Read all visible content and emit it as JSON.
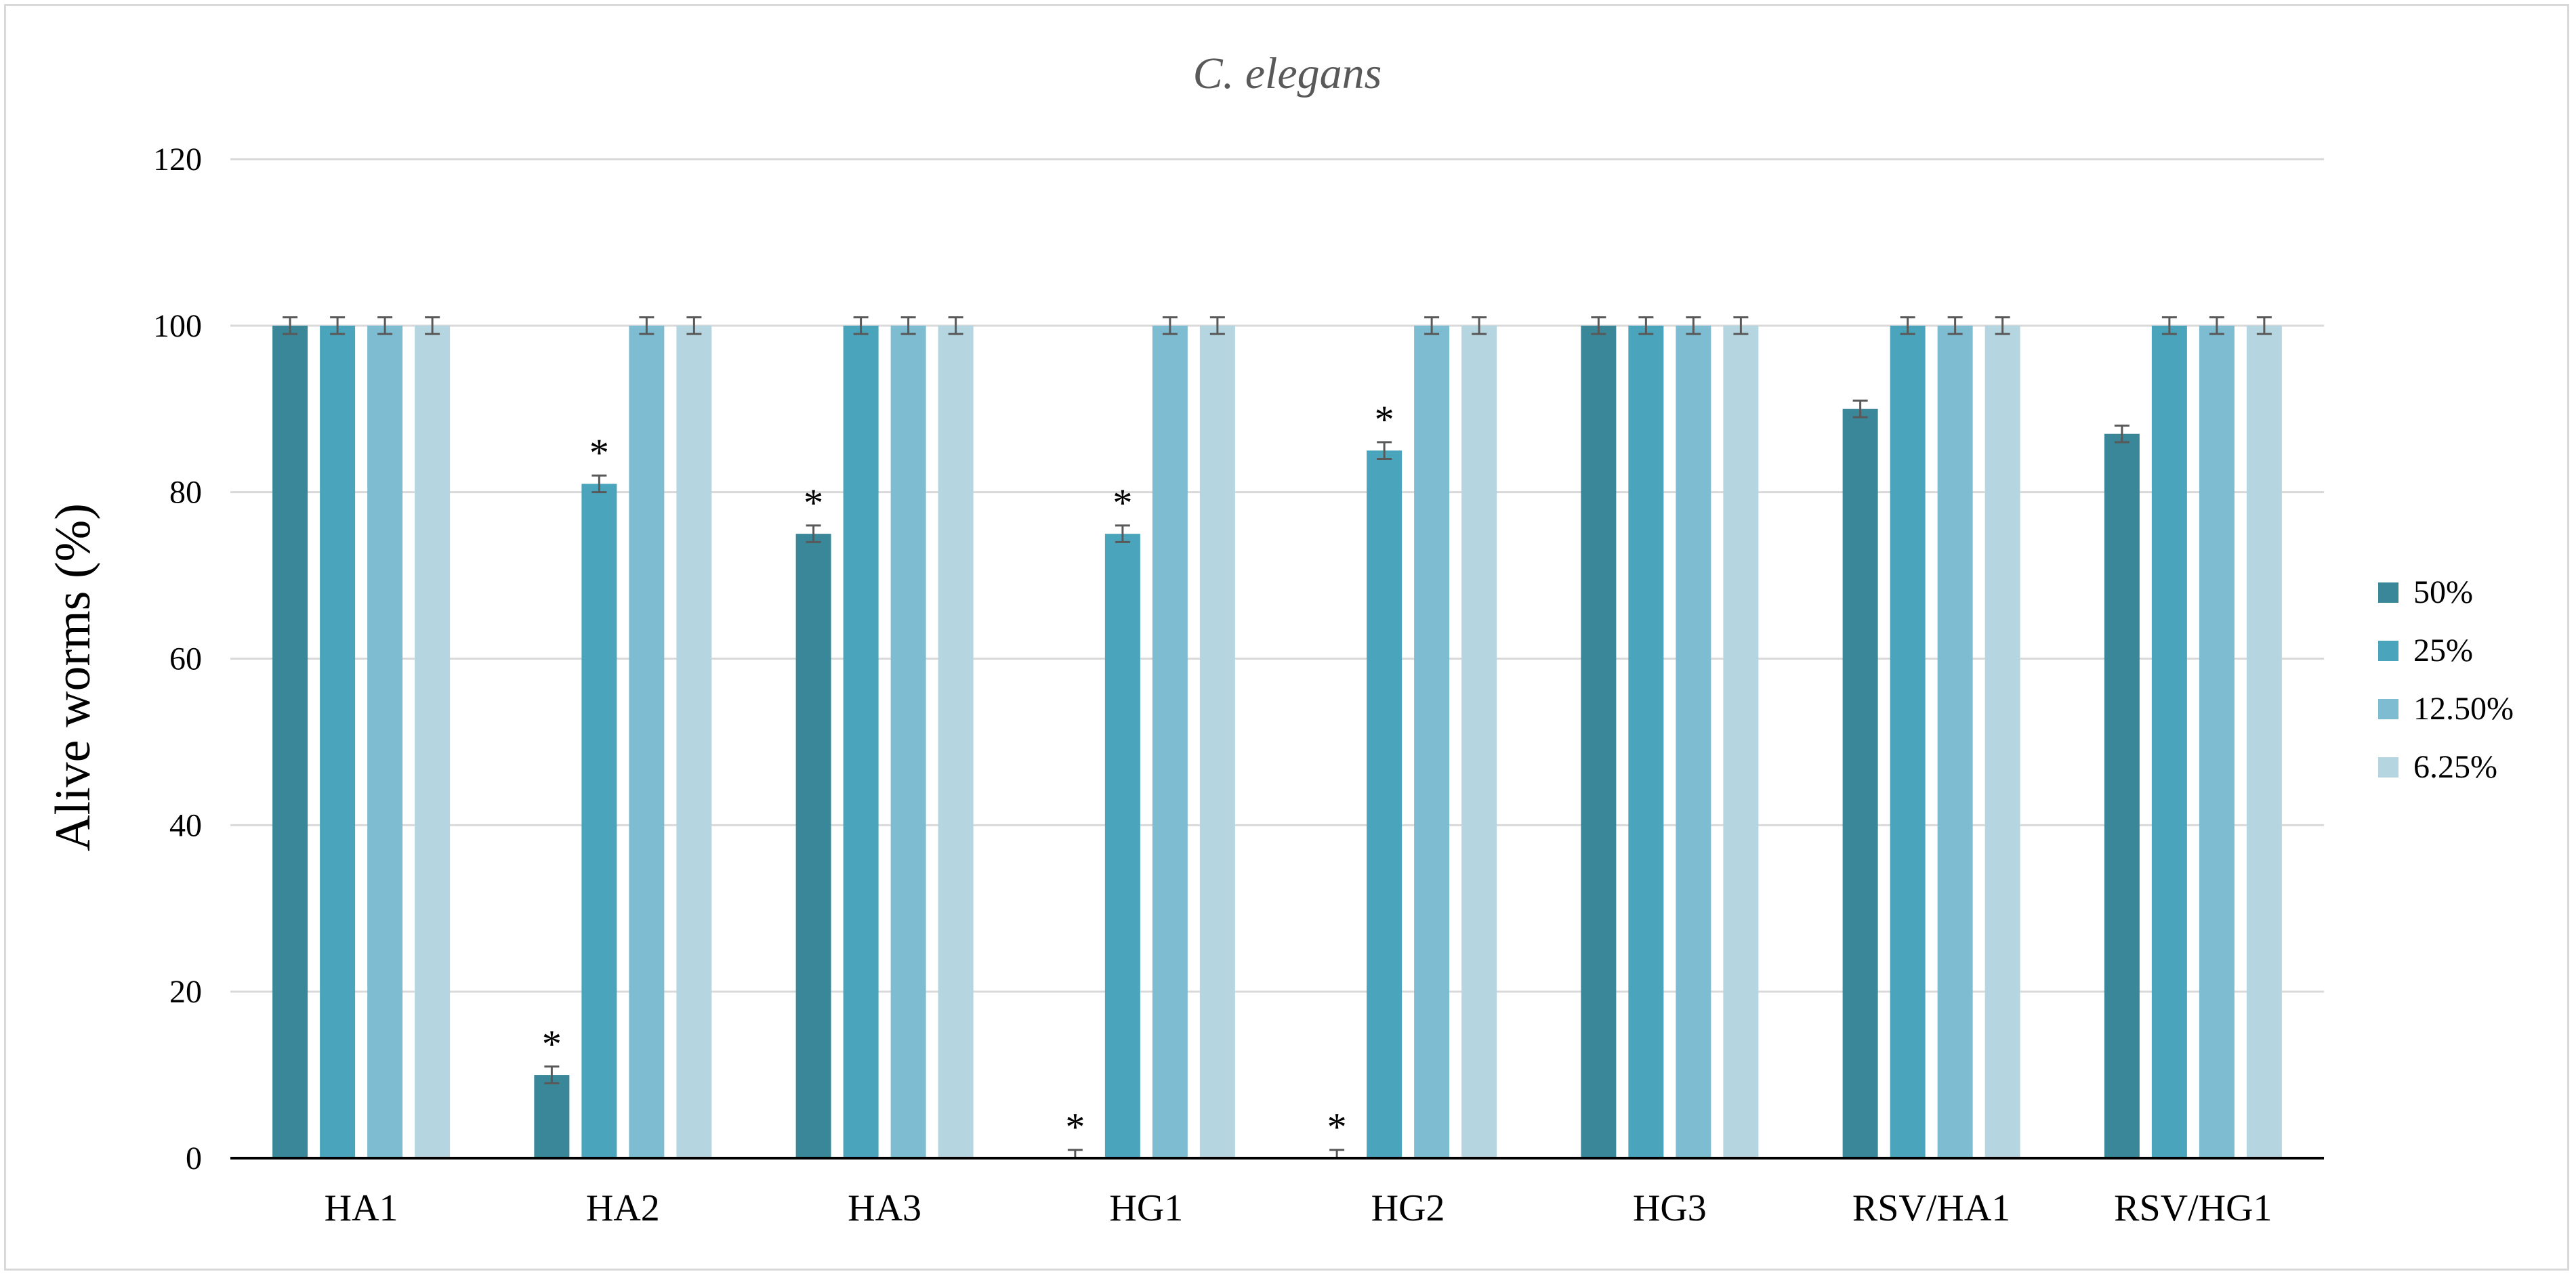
{
  "chart_data": {
    "type": "bar",
    "title": "C. elegans",
    "xlabel": "",
    "ylabel": "Alive worms (%)",
    "ylim": [
      0,
      120
    ],
    "yticks": [
      0,
      20,
      40,
      60,
      80,
      100,
      120
    ],
    "grid": true,
    "legend_position": "right",
    "categories": [
      "HA1",
      "HA2",
      "HA3",
      "HG1",
      "HG2",
      "HG3",
      "RSV/HA1",
      "RSV/HG1"
    ],
    "series": [
      {
        "name": "50%",
        "color": "#3a8799",
        "values": [
          100,
          10,
          75,
          0,
          0,
          100,
          90,
          87
        ],
        "significant": [
          false,
          true,
          true,
          true,
          true,
          false,
          false,
          false
        ]
      },
      {
        "name": "25%",
        "color": "#4aa5bc",
        "values": [
          100,
          81,
          100,
          75,
          85,
          100,
          100,
          100
        ],
        "significant": [
          false,
          true,
          false,
          true,
          true,
          false,
          false,
          false
        ]
      },
      {
        "name": "12.50%",
        "color": "#7dbcd1",
        "values": [
          100,
          100,
          100,
          100,
          100,
          100,
          100,
          100
        ],
        "significant": [
          false,
          false,
          false,
          false,
          false,
          false,
          false,
          false
        ]
      },
      {
        "name": "6.25%",
        "color": "#b5d6e1",
        "values": [
          100,
          100,
          100,
          100,
          100,
          100,
          100,
          100
        ],
        "significant": [
          false,
          false,
          false,
          false,
          false,
          false,
          false,
          false
        ]
      }
    ],
    "error": 1,
    "significance_marker": "*"
  }
}
